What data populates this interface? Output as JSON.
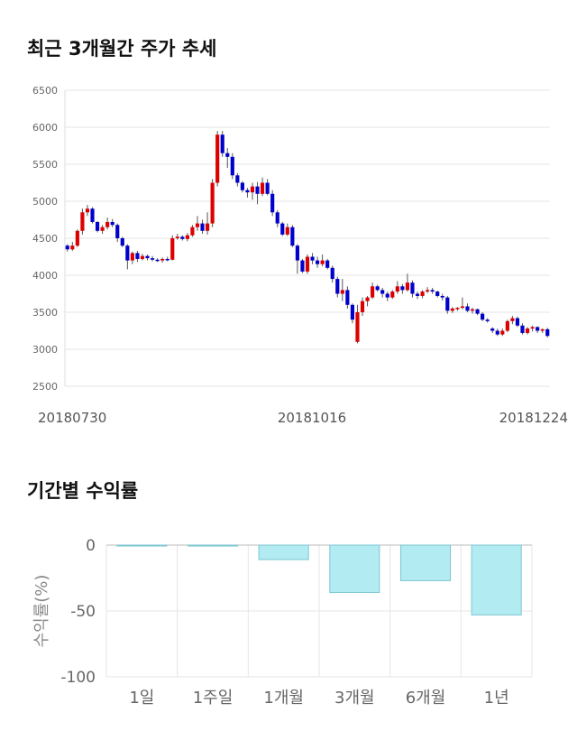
{
  "chart_data": [
    {
      "type": "candlestick",
      "title": "최근 3개월간 주가 추세",
      "ylim": [
        2500,
        6500
      ],
      "yticks": [
        2500,
        3000,
        3500,
        4000,
        4500,
        5000,
        5500,
        6000,
        6500
      ],
      "xtick_labels": [
        "20180730",
        "20181016",
        "20181224"
      ],
      "colors": {
        "up": "#dd0000",
        "down": "#0000cc",
        "wick": "#555555",
        "grid": "#e5e5e5"
      },
      "ohlc": [
        [
          4400,
          4420,
          4320,
          4350
        ],
        [
          4350,
          4450,
          4330,
          4400
        ],
        [
          4400,
          4620,
          4380,
          4600
        ],
        [
          4600,
          4900,
          4550,
          4850
        ],
        [
          4850,
          4950,
          4800,
          4900
        ],
        [
          4900,
          4920,
          4700,
          4720
        ],
        [
          4720,
          4730,
          4580,
          4600
        ],
        [
          4600,
          4680,
          4560,
          4650
        ],
        [
          4650,
          4780,
          4620,
          4720
        ],
        [
          4720,
          4760,
          4650,
          4680
        ],
        [
          4680,
          4700,
          4450,
          4500
        ],
        [
          4500,
          4520,
          4380,
          4400
        ],
        [
          4400,
          4420,
          4080,
          4200
        ],
        [
          4200,
          4320,
          4150,
          4300
        ],
        [
          4300,
          4330,
          4180,
          4220
        ],
        [
          4220,
          4290,
          4200,
          4260
        ],
        [
          4260,
          4280,
          4200,
          4230
        ],
        [
          4230,
          4260,
          4190,
          4210
        ],
        [
          4210,
          4230,
          4180,
          4200
        ],
        [
          4200,
          4240,
          4170,
          4220
        ],
        [
          4220,
          4250,
          4190,
          4210
        ],
        [
          4210,
          4540,
          4200,
          4500
        ],
        [
          4500,
          4560,
          4480,
          4520
        ],
        [
          4520,
          4540,
          4470,
          4490
        ],
        [
          4490,
          4570,
          4460,
          4540
        ],
        [
          4540,
          4680,
          4520,
          4650
        ],
        [
          4650,
          4800,
          4600,
          4700
        ],
        [
          4700,
          4750,
          4560,
          4600
        ],
        [
          4600,
          4850,
          4550,
          4700
        ],
        [
          4700,
          5300,
          4650,
          5250
        ],
        [
          5250,
          5950,
          5200,
          5900
        ],
        [
          5900,
          5950,
          5600,
          5650
        ],
        [
          5650,
          5720,
          5450,
          5600
        ],
        [
          5600,
          5650,
          5300,
          5350
        ],
        [
          5350,
          5380,
          5200,
          5250
        ],
        [
          5250,
          5270,
          5120,
          5150
        ],
        [
          5150,
          5180,
          5050,
          5120
        ],
        [
          5120,
          5250,
          5020,
          5200
        ],
        [
          5200,
          5260,
          4960,
          5100
        ],
        [
          5100,
          5320,
          5070,
          5250
        ],
        [
          5250,
          5300,
          5080,
          5100
        ],
        [
          5100,
          5150,
          4800,
          4850
        ],
        [
          4850,
          4880,
          4650,
          4700
        ],
        [
          4700,
          4720,
          4530,
          4550
        ],
        [
          4550,
          4700,
          4530,
          4650
        ],
        [
          4650,
          4680,
          4380,
          4400
        ],
        [
          4400,
          4420,
          4020,
          4200
        ],
        [
          4200,
          4220,
          4030,
          4050
        ],
        [
          4050,
          4280,
          4020,
          4250
        ],
        [
          4250,
          4300,
          4150,
          4200
        ],
        [
          4200,
          4250,
          4100,
          4150
        ],
        [
          4150,
          4280,
          4120,
          4200
        ],
        [
          4200,
          4220,
          4080,
          4100
        ],
        [
          4100,
          4130,
          3900,
          3950
        ],
        [
          3950,
          3980,
          3700,
          3750
        ],
        [
          3750,
          3950,
          3650,
          3800
        ],
        [
          3800,
          3850,
          3550,
          3600
        ],
        [
          3600,
          3620,
          3350,
          3400
        ],
        [
          3100,
          3600,
          3080,
          3500
        ],
        [
          3500,
          3700,
          3450,
          3650
        ],
        [
          3650,
          3720,
          3580,
          3700
        ],
        [
          3700,
          3900,
          3680,
          3850
        ],
        [
          3850,
          3870,
          3780,
          3800
        ],
        [
          3800,
          3830,
          3700,
          3750
        ],
        [
          3750,
          3780,
          3650,
          3700
        ],
        [
          3700,
          3800,
          3680,
          3780
        ],
        [
          3780,
          3920,
          3750,
          3850
        ],
        [
          3850,
          3880,
          3750,
          3800
        ],
        [
          3800,
          4020,
          3780,
          3900
        ],
        [
          3900,
          3930,
          3700,
          3750
        ],
        [
          3750,
          3780,
          3680,
          3720
        ],
        [
          3720,
          3800,
          3690,
          3780
        ],
        [
          3780,
          3840,
          3760,
          3800
        ],
        [
          3800,
          3830,
          3750,
          3780
        ],
        [
          3780,
          3790,
          3700,
          3720
        ],
        [
          3720,
          3750,
          3660,
          3700
        ],
        [
          3700,
          3720,
          3480,
          3520
        ],
        [
          3520,
          3570,
          3490,
          3550
        ],
        [
          3550,
          3570,
          3520,
          3560
        ],
        [
          3560,
          3700,
          3540,
          3580
        ],
        [
          3580,
          3620,
          3500,
          3520
        ],
        [
          3520,
          3560,
          3480,
          3540
        ],
        [
          3540,
          3550,
          3460,
          3480
        ],
        [
          3480,
          3500,
          3380,
          3400
        ],
        [
          3400,
          3420,
          3360,
          3380
        ],
        [
          3280,
          3300,
          3220,
          3250
        ],
        [
          3250,
          3280,
          3180,
          3200
        ],
        [
          3200,
          3280,
          3180,
          3250
        ],
        [
          3250,
          3400,
          3230,
          3380
        ],
        [
          3380,
          3450,
          3340,
          3420
        ],
        [
          3420,
          3440,
          3300,
          3320
        ],
        [
          3320,
          3350,
          3200,
          3220
        ],
        [
          3220,
          3300,
          3200,
          3280
        ],
        [
          3280,
          3320,
          3240,
          3300
        ],
        [
          3300,
          3310,
          3220,
          3250
        ],
        [
          3250,
          3280,
          3220,
          3270
        ],
        [
          3270,
          3290,
          3160,
          3180
        ]
      ]
    },
    {
      "type": "bar",
      "title": "기간별 수익률",
      "categories": [
        "1일",
        "1주일",
        "1개월",
        "3개월",
        "6개월",
        "1년"
      ],
      "values": [
        0,
        -0.7,
        -11,
        -36,
        -27,
        -53
      ],
      "ylabel": "수익률(%)",
      "ylim": [
        -100,
        0
      ],
      "yticks": [
        0,
        -50,
        -100
      ],
      "colors": {
        "bar": "#b3ebf2",
        "border": "#7cc6d1",
        "grid": "#e5e5e5"
      }
    }
  ]
}
